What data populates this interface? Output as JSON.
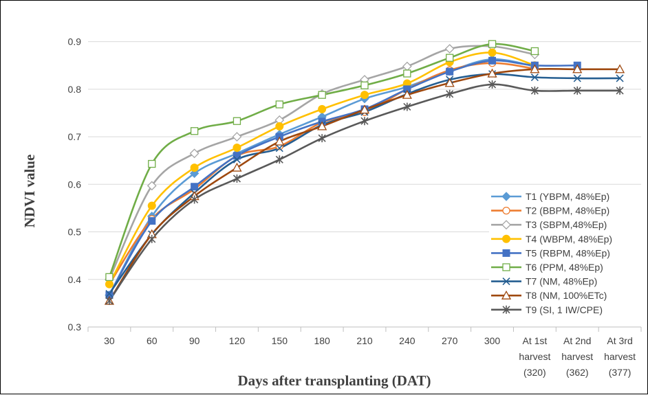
{
  "chart_data": {
    "type": "line",
    "title": "",
    "xlabel": "Days after transplanting (DAT)",
    "ylabel": "NDVI value",
    "ylim": [
      0.3,
      0.95
    ],
    "yticks": [
      "0.3",
      "0.4",
      "0.5",
      "0.6",
      "0.7",
      "0.8",
      "0.9"
    ],
    "categories": [
      [
        "30"
      ],
      [
        "60"
      ],
      [
        "90"
      ],
      [
        "120"
      ],
      [
        "150"
      ],
      [
        "180"
      ],
      [
        "210"
      ],
      [
        "240"
      ],
      [
        "270"
      ],
      [
        "300"
      ],
      [
        "At 1st",
        "harvest",
        "(320)"
      ],
      [
        "At 2nd",
        "harvest",
        "(362)"
      ],
      [
        "At 3rd",
        "harvest",
        "(377)"
      ]
    ],
    "grid": true,
    "legend_position": "right",
    "series": [
      {
        "name": "T1 (YBPM, 48%Ep)",
        "color": "#5b9bd5",
        "marker": "diamond-filled",
        "values": [
          0.367,
          0.533,
          0.623,
          0.665,
          0.705,
          0.742,
          0.78,
          0.805,
          0.838,
          0.863,
          0.848,
          null,
          null
        ]
      },
      {
        "name": "T2 (BBPM, 48%Ep)",
        "color": "#ed7d31",
        "marker": "circle-open",
        "values": [
          0.39,
          0.527,
          0.59,
          0.66,
          0.68,
          0.73,
          0.752,
          0.8,
          0.84,
          0.855,
          0.843,
          null,
          null
        ]
      },
      {
        "name": "T3 (SBPM,48%Ep)",
        "color": "#a5a5a5",
        "marker": "diamond-open",
        "values": [
          0.4,
          0.597,
          0.665,
          0.7,
          0.735,
          0.79,
          0.82,
          0.848,
          0.885,
          0.89,
          0.873,
          null,
          null
        ]
      },
      {
        "name": "T4 (WBPM, 48%Ep)",
        "color": "#ffc000",
        "marker": "circle-filled",
        "values": [
          0.39,
          0.555,
          0.635,
          0.677,
          0.722,
          0.758,
          0.788,
          0.812,
          0.857,
          0.877,
          0.85,
          null,
          null
        ]
      },
      {
        "name": "T5 (RBPM, 48%Ep)",
        "color": "#4472c4",
        "marker": "square-filled",
        "values": [
          0.367,
          0.523,
          0.595,
          0.66,
          0.7,
          0.732,
          0.758,
          0.8,
          0.837,
          0.86,
          0.85,
          0.85,
          null
        ]
      },
      {
        "name": "T6 (PPM, 48%Ep)",
        "color": "#70ad47",
        "marker": "square-open",
        "values": [
          0.405,
          0.643,
          0.712,
          0.733,
          0.768,
          0.788,
          0.808,
          0.833,
          0.866,
          0.895,
          0.88,
          null,
          null
        ]
      },
      {
        "name": "T7 (NM, 48%Ep)",
        "color": "#255e91",
        "marker": "x",
        "values": [
          0.37,
          0.495,
          0.582,
          0.652,
          0.676,
          0.725,
          0.752,
          0.79,
          0.82,
          0.832,
          0.825,
          0.823,
          0.823
        ]
      },
      {
        "name": "T8 (NM, 100%ETc)",
        "color": "#9e480e",
        "marker": "triangle-open",
        "values": [
          0.355,
          0.495,
          0.575,
          0.635,
          0.69,
          0.722,
          0.757,
          0.788,
          0.813,
          0.833,
          0.842,
          0.842,
          0.842
        ]
      },
      {
        "name": "T9 (SI, 1 IW/CPE)",
        "color": "#595959",
        "marker": "star",
        "values": [
          0.355,
          0.485,
          0.568,
          0.612,
          0.652,
          0.697,
          0.733,
          0.763,
          0.79,
          0.81,
          0.797,
          0.797,
          0.797
        ]
      }
    ]
  }
}
